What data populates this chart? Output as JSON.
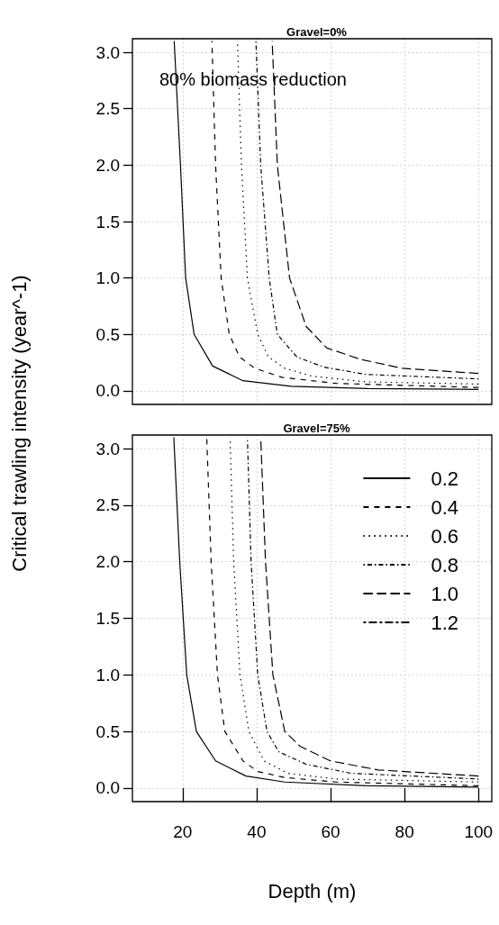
{
  "chart_data": [
    {
      "type": "line",
      "title": "Gravel=0%",
      "ylabel": "Critical trawling intensity (year^-1)",
      "annotations": [
        "80% biomass reduction"
      ],
      "xlim": [
        6.4,
        103.6
      ],
      "xticks": [
        20,
        40,
        60,
        80,
        100
      ],
      "ylim": [
        -0.12,
        3.12
      ],
      "yticks": [
        {
          "value": 0,
          "label": "0.0"
        },
        {
          "value": 0.5,
          "label": "0.5"
        },
        {
          "value": 1,
          "label": "1.0"
        },
        {
          "value": 1.5,
          "label": "1.5"
        },
        {
          "value": 2,
          "label": "2.0"
        },
        {
          "value": 2.5,
          "label": "2.5"
        },
        {
          "value": 3,
          "label": "3.0"
        }
      ],
      "grid": true,
      "legend": false,
      "tick_labels": "y",
      "marker": "none",
      "series": [
        {
          "color": "#000000",
          "line_style": "solid",
          "x": [
            17.7,
            19.4,
            20.8,
            23.1,
            28.1,
            36.3,
            49.3,
            70,
            100
          ],
          "values": [
            3.1,
            2.0,
            1.0,
            0.5,
            0.22,
            0.09,
            0.04,
            0.02,
            0.013
          ]
        },
        {
          "color": "#000000",
          "line_style": "dashed",
          "x": [
            27.9,
            28.9,
            30.4,
            32.6,
            35.4,
            39.5,
            46.8,
            61.5,
            100
          ],
          "values": [
            3.1,
            2.0,
            1.0,
            0.5,
            0.3,
            0.2,
            0.12,
            0.066,
            0.03
          ]
        },
        {
          "color": "#000000",
          "line_style": "dotted",
          "x": [
            34.8,
            35.9,
            37.5,
            40.3,
            43.2,
            47.6,
            55,
            69.6,
            100
          ],
          "values": [
            3.1,
            2.0,
            1.0,
            0.5,
            0.3,
            0.2,
            0.13,
            0.08,
            0.06
          ]
        },
        {
          "color": "#000000",
          "line_style": "dotdash",
          "x": [
            39.8,
            41.1,
            43.4,
            45.6,
            50.9,
            58.2,
            69.6,
            100
          ],
          "values": [
            3.1,
            2.0,
            1.0,
            0.5,
            0.3,
            0.21,
            0.146,
            0.106
          ]
        },
        {
          "color": "#000000",
          "line_style": "longdash",
          "x": [
            44.2,
            45.6,
            48.9,
            53.4,
            59,
            68,
            79.4,
            100
          ],
          "values": [
            3.1,
            2.0,
            1.0,
            0.57,
            0.38,
            0.28,
            0.2,
            0.154
          ]
        }
      ]
    },
    {
      "type": "line",
      "title": "Gravel=75%",
      "xlabel": "Depth (m)",
      "xlim": [
        6.4,
        103.6
      ],
      "xticks": [
        20,
        40,
        60,
        80,
        100
      ],
      "ylim": [
        -0.12,
        3.12
      ],
      "yticks": [
        {
          "value": 0,
          "label": "0.0"
        },
        {
          "value": 0.5,
          "label": "0.5"
        },
        {
          "value": 1,
          "label": "1.0"
        },
        {
          "value": 1.5,
          "label": "1.5"
        },
        {
          "value": 2,
          "label": "2.0"
        },
        {
          "value": 2.5,
          "label": "2.5"
        },
        {
          "value": 3,
          "label": "3.0"
        }
      ],
      "grid": true,
      "legend": "top right",
      "marker": "none",
      "series": [
        {
          "name": "0.2",
          "color": "#000000",
          "line_style": "solid",
          "x": [
            17.6,
            19.2,
            21.1,
            23.7,
            28.9,
            37.1,
            47.6,
            69.6,
            100
          ],
          "values": [
            3.1,
            2.0,
            1.0,
            0.5,
            0.24,
            0.106,
            0.053,
            0.02,
            0.008
          ]
        },
        {
          "name": "0.4",
          "color": "#000000",
          "line_style": "dashed",
          "x": [
            26.5,
            27.7,
            29.4,
            31.4,
            36.3,
            40.3,
            47.6,
            61.5,
            100
          ],
          "values": [
            3.1,
            2.0,
            1.0,
            0.5,
            0.24,
            0.146,
            0.093,
            0.053,
            0.02
          ]
        },
        {
          "name": "0.6",
          "color": "#000000",
          "line_style": "dotted",
          "x": [
            32.8,
            33.8,
            35.5,
            37.9,
            42,
            48.5,
            61.5,
            100
          ],
          "values": [
            3.1,
            2.0,
            1.0,
            0.5,
            0.24,
            0.13,
            0.08,
            0.053
          ]
        },
        {
          "name": "0.8",
          "color": "#000000",
          "line_style": "dotdash",
          "x": [
            37.5,
            38.5,
            40.3,
            42.8,
            46,
            53.4,
            65.6,
            100
          ],
          "values": [
            3.1,
            2.0,
            1.0,
            0.5,
            0.32,
            0.21,
            0.13,
            0.08
          ]
        },
        {
          "name": "1.0",
          "color": "#000000",
          "line_style": "longdash",
          "x": [
            41.1,
            42.4,
            44.4,
            47.6,
            51.7,
            59.9,
            72.9,
            100
          ],
          "values": [
            3.1,
            2.0,
            1.0,
            0.5,
            0.37,
            0.24,
            0.16,
            0.106
          ]
        },
        {
          "name": "1.2",
          "color": "#000000",
          "line_style": "twodash"
        }
      ]
    }
  ]
}
